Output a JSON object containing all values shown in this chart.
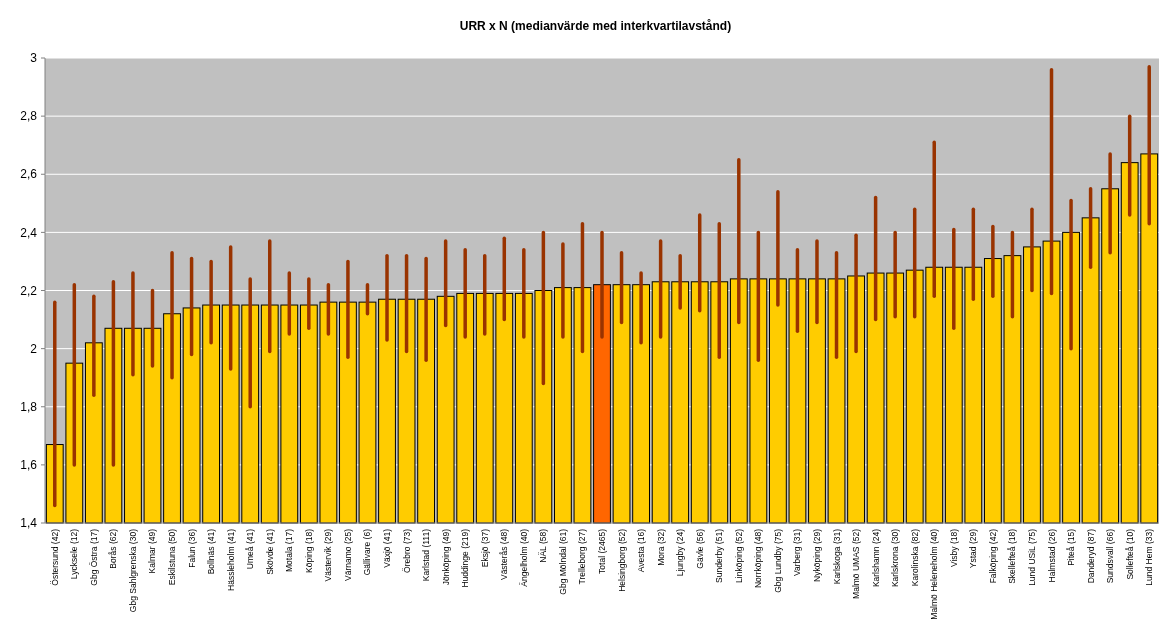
{
  "chart_data": {
    "type": "bar",
    "title": "URR x N (medianvärde med interkvartilavstånd)",
    "categories": [
      "Östersund (42)",
      "Lycksele (12)",
      "Gbg Östra (17)",
      "Borås (62)",
      "Gbg Sahlgrenska (30)",
      "Kalmar (49)",
      "Eskilstuna (50)",
      "Falun (36)",
      "Bollnäs (41)",
      "Hässleholm (41)",
      "Umeå (41)",
      "Skövde (41)",
      "Motala (17)",
      "Köping (18)",
      "Västervik (29)",
      "Värnamo (25)",
      "Gällivare (6)",
      "Växjö (41)",
      "Örebro (73)",
      "Karlstad (111)",
      "Jönköping (49)",
      "Huddinge (219)",
      "Eksjö (37)",
      "Västerås (48)",
      "Ängelholm (40)",
      "NÄL (58)",
      "Gbg Mölndal (61)",
      "Trelleborg (27)",
      "Total (2465)",
      "Helsingborg (52)",
      "Avesta (16)",
      "Mora (32)",
      "Ljungby (24)",
      "Gävle (56)",
      "Sunderby (51)",
      "Linköping (52)",
      "Norrköping (48)",
      "Gbg Lundby (75)",
      "Varberg (31)",
      "Nyköping (29)",
      "Karlskoga (31)",
      "Malmö UMAS (52)",
      "Karlshamn (24)",
      "Karlskrona (30)",
      "Karolinska (82)",
      "Malmö Heleneholm (40)",
      "Visby (18)",
      "Ystad (29)",
      "Falköping (42)",
      "Skellefteå (18)",
      "Lund USiL (75)",
      "Halmstad (26)",
      "Piteå (15)",
      "Danderyd (87)",
      "Sundsvall (66)",
      "Sollefteå (10)",
      "Lund Hem (33)"
    ],
    "values": [
      1.67,
      1.95,
      2.02,
      2.07,
      2.07,
      2.07,
      2.12,
      2.14,
      2.15,
      2.15,
      2.15,
      2.15,
      2.15,
      2.15,
      2.16,
      2.16,
      2.16,
      2.17,
      2.17,
      2.17,
      2.18,
      2.19,
      2.19,
      2.19,
      2.19,
      2.2,
      2.21,
      2.21,
      2.22,
      2.22,
      2.22,
      2.23,
      2.23,
      2.23,
      2.23,
      2.24,
      2.24,
      2.24,
      2.24,
      2.24,
      2.24,
      2.25,
      2.26,
      2.26,
      2.27,
      2.28,
      2.28,
      2.28,
      2.31,
      2.32,
      2.35,
      2.37,
      2.4,
      2.45,
      2.55,
      2.64,
      2.67
    ],
    "errors": [
      [
        1.46,
        2.16
      ],
      [
        1.6,
        2.22
      ],
      [
        1.84,
        2.18
      ],
      [
        1.6,
        2.23
      ],
      [
        1.91,
        2.26
      ],
      [
        1.94,
        2.2
      ],
      [
        1.9,
        2.33
      ],
      [
        1.98,
        2.31
      ],
      [
        2.02,
        2.3
      ],
      [
        1.93,
        2.35
      ],
      [
        1.8,
        2.24
      ],
      [
        1.99,
        2.37
      ],
      [
        2.05,
        2.26
      ],
      [
        2.07,
        2.24
      ],
      [
        2.05,
        2.22
      ],
      [
        1.97,
        2.3
      ],
      [
        2.12,
        2.22
      ],
      [
        2.03,
        2.32
      ],
      [
        1.99,
        2.32
      ],
      [
        1.96,
        2.31
      ],
      [
        2.08,
        2.37
      ],
      [
        2.04,
        2.34
      ],
      [
        2.05,
        2.32
      ],
      [
        2.1,
        2.38
      ],
      [
        2.04,
        2.34
      ],
      [
        1.88,
        2.4
      ],
      [
        2.04,
        2.36
      ],
      [
        1.99,
        2.43
      ],
      [
        2.04,
        2.4
      ],
      [
        2.09,
        2.33
      ],
      [
        2.02,
        2.26
      ],
      [
        2.04,
        2.37
      ],
      [
        2.14,
        2.32
      ],
      [
        2.13,
        2.46
      ],
      [
        1.97,
        2.43
      ],
      [
        2.09,
        2.65
      ],
      [
        1.96,
        2.4
      ],
      [
        2.15,
        2.54
      ],
      [
        2.06,
        2.34
      ],
      [
        2.09,
        2.37
      ],
      [
        1.97,
        2.33
      ],
      [
        1.99,
        2.39
      ],
      [
        2.1,
        2.52
      ],
      [
        2.11,
        2.4
      ],
      [
        2.11,
        2.48
      ],
      [
        2.18,
        2.71
      ],
      [
        2.07,
        2.41
      ],
      [
        2.17,
        2.48
      ],
      [
        2.18,
        2.42
      ],
      [
        2.11,
        2.4
      ],
      [
        2.2,
        2.48
      ],
      [
        2.19,
        2.96
      ],
      [
        2.0,
        2.51
      ],
      [
        2.28,
        2.55
      ],
      [
        2.33,
        2.67
      ],
      [
        2.46,
        2.8
      ],
      [
        2.43,
        2.97
      ]
    ],
    "colors": [
      "#ffcc00",
      "#ffcc00",
      "#ffcc00",
      "#ffcc00",
      "#ffcc00",
      "#ffcc00",
      "#ffcc00",
      "#ffcc00",
      "#ffcc00",
      "#ffcc00",
      "#ffcc00",
      "#ffcc00",
      "#ffcc00",
      "#ffcc00",
      "#ffcc00",
      "#ffcc00",
      "#ffcc00",
      "#ffcc00",
      "#ffcc00",
      "#ffcc00",
      "#ffcc00",
      "#ffcc00",
      "#ffcc00",
      "#ffcc00",
      "#ffcc00",
      "#ffcc00",
      "#ffcc00",
      "#ffcc00",
      "#ff6600",
      "#ffcc00",
      "#ffcc00",
      "#ffcc00",
      "#ffcc00",
      "#ffcc00",
      "#ffcc00",
      "#ffcc00",
      "#ffcc00",
      "#ffcc00",
      "#ffcc00",
      "#ffcc00",
      "#ffcc00",
      "#ffcc00",
      "#ffcc00",
      "#ffcc00",
      "#ffcc00",
      "#ffcc00",
      "#ffcc00",
      "#ffcc00",
      "#ffcc00",
      "#ffcc00",
      "#ffcc00",
      "#ffcc00",
      "#ffcc00",
      "#ffcc00",
      "#ffcc00",
      "#ffcc00",
      "#ffcc00"
    ],
    "ylim": [
      1.4,
      3
    ],
    "yticks": [
      {
        "value": 1.4,
        "label": "1,4"
      },
      {
        "value": 1.6,
        "label": "1,6"
      },
      {
        "value": 1.8,
        "label": "1,8"
      },
      2,
      {
        "value": 2.2,
        "label": "2,2"
      },
      {
        "value": 2.4,
        "label": "2,4"
      },
      {
        "value": 2.6,
        "label": "2,6"
      },
      {
        "value": 2.8,
        "label": "2,8"
      },
      3
    ],
    "grid": "y"
  }
}
